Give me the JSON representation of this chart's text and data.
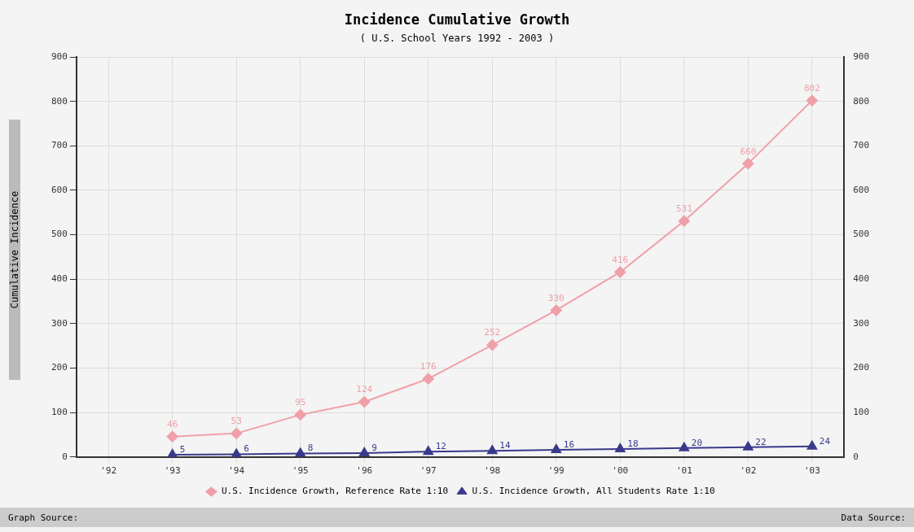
{
  "chart_data": {
    "type": "line",
    "title": "Incidence Cumulative Growth",
    "subtitle": "( U.S. School Years 1992 - 2003 )",
    "ylabel": "Cumulative Incidence",
    "categories": [
      "'92",
      "'93",
      "'94",
      "'95",
      "'96",
      "'97",
      "'98",
      "'99",
      "'00",
      "'01",
      "'02",
      "'03"
    ],
    "series": [
      {
        "name": "U.S. Incidence Growth, Reference Rate 1:10",
        "color": "#f0a0a8",
        "marker": "diamond",
        "values": [
          null,
          46,
          53,
          95,
          124,
          176,
          252,
          330,
          416,
          531,
          660,
          802
        ]
      },
      {
        "name": "U.S. Incidence Growth, All Students Rate 1:10",
        "color": "#3a3a8c",
        "marker": "triangle",
        "values": [
          null,
          5,
          6,
          8,
          9,
          12,
          14,
          16,
          18,
          20,
          22,
          24
        ]
      }
    ],
    "data_labels": true,
    "ylim": [
      0,
      900
    ],
    "yticks": [
      0,
      100,
      200,
      300,
      400,
      500,
      600,
      700,
      800,
      900
    ],
    "y2lim": [
      0,
      900
    ],
    "y2ticks": [
      0,
      100,
      200,
      300,
      400,
      500,
      600,
      700,
      800,
      900
    ],
    "grid": true,
    "legend": "bottom",
    "annotations": [
      "Graph Source: ",
      "Data Source: "
    ]
  }
}
